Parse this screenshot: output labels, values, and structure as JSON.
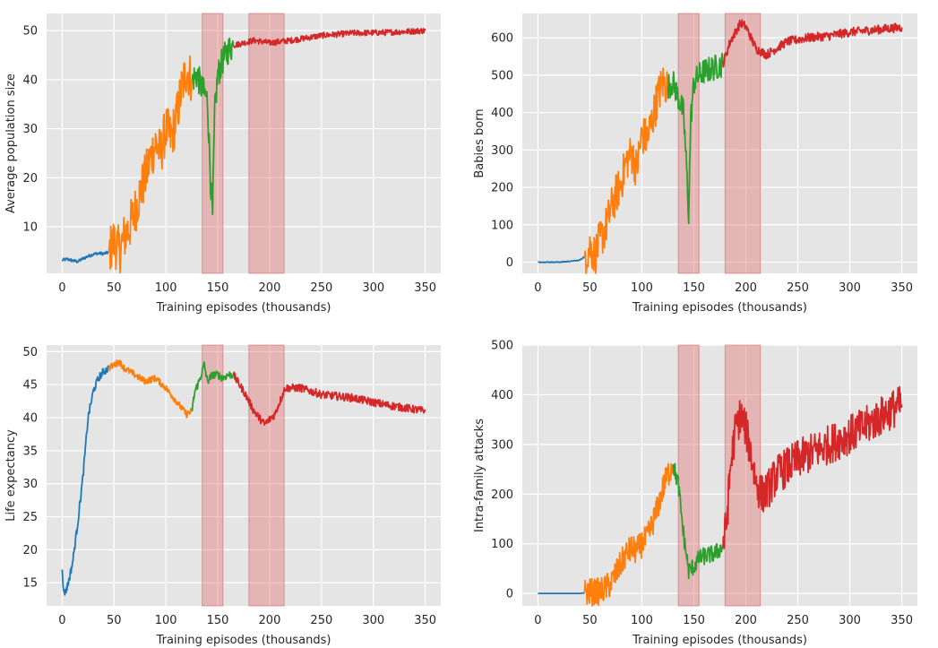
{
  "figure": {
    "colors": {
      "background": "#e5e5e5",
      "grid": "#ffffff",
      "phase1": "#1f77b4",
      "phase2": "#ff7f0e",
      "phase3": "#2ca02c",
      "phase4": "#d62728",
      "shade": "#e06666"
    },
    "shaded_regions": [
      [
        135,
        155
      ],
      [
        180,
        214
      ]
    ],
    "phase_breaks": [
      45,
      125,
      165
    ]
  },
  "chart_data": [
    {
      "type": "line",
      "id": "population",
      "title": "",
      "xlabel": "Training episodes (thousands)",
      "ylabel": "Average population size",
      "xlim": [
        -15,
        365
      ],
      "ylim": [
        0.5,
        53.5
      ],
      "xticks": [
        0,
        50,
        100,
        150,
        200,
        250,
        300,
        350
      ],
      "yticks": [
        10,
        20,
        30,
        40,
        50
      ],
      "series": [
        {
          "name": "phase1",
          "color": "#1f77b4",
          "x": [
            0,
            5,
            10,
            15,
            20,
            25,
            30,
            35,
            40,
            45
          ],
          "y": [
            3.2,
            3.4,
            3.1,
            2.9,
            3.5,
            4.0,
            4.4,
            4.6,
            4.5,
            4.8
          ],
          "noise": 0.3
        },
        {
          "name": "phase2",
          "color": "#ff7f0e",
          "x": [
            45,
            50,
            55,
            60,
            65,
            70,
            75,
            80,
            85,
            90,
            95,
            100,
            105,
            110,
            115,
            120,
            125
          ],
          "y": [
            5,
            7,
            5,
            8,
            10,
            13,
            17,
            20,
            24,
            27,
            25,
            30,
            28,
            32,
            38,
            42,
            40
          ],
          "noise": 5
        },
        {
          "name": "phase3",
          "color": "#2ca02c",
          "x": [
            125,
            130,
            135,
            140,
            143,
            145,
            147,
            150,
            155,
            160,
            165
          ],
          "y": [
            40,
            41,
            38,
            36,
            20,
            12,
            33,
            41,
            44,
            46,
            47
          ],
          "noise": 3
        },
        {
          "name": "phase4",
          "color": "#d62728",
          "x": [
            165,
            175,
            185,
            200,
            220,
            250,
            280,
            310,
            350
          ],
          "y": [
            47,
            47.5,
            48,
            47.5,
            48,
            49,
            49.5,
            49.6,
            50
          ],
          "noise": 0.6
        }
      ]
    },
    {
      "type": "line",
      "id": "babies",
      "title": "",
      "xlabel": "Training episodes (thousands)",
      "ylabel": "Babies born",
      "xlim": [
        -15,
        365
      ],
      "ylim": [
        -30,
        665
      ],
      "xticks": [
        0,
        50,
        100,
        150,
        200,
        250,
        300,
        350
      ],
      "yticks": [
        0,
        100,
        200,
        300,
        400,
        500,
        600
      ],
      "series": [
        {
          "name": "phase1",
          "color": "#1f77b4",
          "x": [
            0,
            10,
            20,
            30,
            40,
            45
          ],
          "y": [
            0,
            0,
            0,
            2,
            5,
            15
          ],
          "noise": 1
        },
        {
          "name": "phase2",
          "color": "#ff7f0e",
          "x": [
            45,
            50,
            55,
            60,
            65,
            70,
            75,
            80,
            85,
            90,
            95,
            100,
            105,
            110,
            115,
            120,
            125
          ],
          "y": [
            15,
            40,
            20,
            60,
            90,
            140,
            180,
            210,
            270,
            290,
            250,
            340,
            330,
            380,
            440,
            480,
            470
          ],
          "noise": 55
        },
        {
          "name": "phase3",
          "color": "#2ca02c",
          "x": [
            125,
            130,
            135,
            140,
            143,
            145,
            147,
            150,
            155,
            160,
            170,
            178
          ],
          "y": [
            470,
            480,
            440,
            400,
            250,
            130,
            380,
            480,
            500,
            510,
            520,
            530
          ],
          "noise": 35
        },
        {
          "name": "phase4",
          "color": "#d62728",
          "x": [
            178,
            185,
            195,
            200,
            210,
            220,
            240,
            260,
            280,
            300,
            320,
            350
          ],
          "y": [
            530,
            590,
            640,
            630,
            570,
            555,
            590,
            600,
            605,
            615,
            620,
            628
          ],
          "noise": 12
        }
      ]
    },
    {
      "type": "line",
      "id": "life",
      "title": "",
      "xlabel": "Training episodes (thousands)",
      "ylabel": "Life expectancy",
      "xlim": [
        -15,
        365
      ],
      "ylim": [
        11.5,
        51
      ],
      "xticks": [
        0,
        50,
        100,
        150,
        200,
        250,
        300,
        350
      ],
      "yticks": [
        15,
        20,
        25,
        30,
        35,
        40,
        45,
        50
      ],
      "series": [
        {
          "name": "phase1",
          "color": "#1f77b4",
          "x": [
            0,
            1,
            3,
            6,
            10,
            15,
            20,
            25,
            30,
            35,
            40,
            45
          ],
          "y": [
            17,
            14,
            13.5,
            15,
            18,
            24,
            31,
            40,
            44,
            46,
            47,
            47.5
          ],
          "noise": 0.6
        },
        {
          "name": "phase2",
          "color": "#ff7f0e",
          "x": [
            45,
            50,
            55,
            60,
            70,
            80,
            90,
            100,
            110,
            120,
            125
          ],
          "y": [
            47.5,
            48,
            48.5,
            47.5,
            46.5,
            45.5,
            46,
            44.5,
            42.5,
            40.5,
            41
          ],
          "noise": 0.5
        },
        {
          "name": "phase3",
          "color": "#2ca02c",
          "x": [
            125,
            128,
            132,
            137,
            140,
            145,
            150,
            155,
            160,
            165
          ],
          "y": [
            41,
            44,
            45.5,
            48,
            45.5,
            46.5,
            46.5,
            46,
            46.5,
            46.5
          ],
          "noise": 0.6
        },
        {
          "name": "phase4",
          "color": "#d62728",
          "x": [
            165,
            175,
            185,
            195,
            205,
            215,
            230,
            250,
            280,
            310,
            350
          ],
          "y": [
            46.5,
            44,
            41,
            39,
            40.5,
            44.5,
            44.5,
            43.5,
            43,
            42,
            41
          ],
          "noise": 0.6
        }
      ]
    },
    {
      "type": "line",
      "id": "attacks",
      "title": "",
      "xlabel": "Training episodes (thousands)",
      "ylabel": "Intra-family attacks",
      "xlim": [
        -15,
        365
      ],
      "ylim": [
        -25,
        500
      ],
      "xticks": [
        0,
        50,
        100,
        150,
        200,
        250,
        300,
        350
      ],
      "yticks": [
        0,
        100,
        200,
        300,
        400,
        500
      ],
      "series": [
        {
          "name": "phase1",
          "color": "#1f77b4",
          "x": [
            0,
            10,
            20,
            30,
            40,
            45
          ],
          "y": [
            0,
            0,
            0,
            0,
            0,
            1
          ],
          "noise": 0
        },
        {
          "name": "phase2",
          "color": "#ff7f0e",
          "x": [
            45,
            55,
            60,
            65,
            70,
            75,
            80,
            85,
            90,
            95,
            100,
            105,
            110,
            115,
            120,
            125,
            130
          ],
          "y": [
            2,
            3,
            4,
            10,
            20,
            40,
            60,
            80,
            90,
            85,
            100,
            110,
            140,
            170,
            210,
            240,
            260
          ],
          "noise": 28
        },
        {
          "name": "phase3",
          "color": "#2ca02c",
          "x": [
            130,
            135,
            140,
            145,
            150,
            155,
            160,
            170,
            178
          ],
          "y": [
            260,
            220,
            120,
            45,
            55,
            70,
            75,
            80,
            95
          ],
          "noise": 18
        },
        {
          "name": "phase4",
          "color": "#d62728",
          "x": [
            178,
            182,
            185,
            190,
            195,
            200,
            205,
            210,
            215,
            220,
            230,
            250,
            280,
            310,
            340,
            350
          ],
          "y": [
            95,
            150,
            250,
            330,
            360,
            330,
            280,
            220,
            200,
            205,
            240,
            270,
            300,
            330,
            370,
            380
          ],
          "noise": 40
        }
      ]
    }
  ]
}
